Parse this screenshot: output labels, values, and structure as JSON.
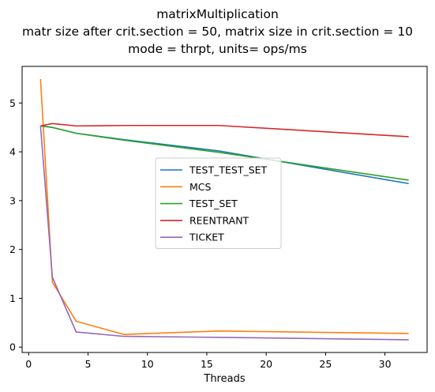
{
  "chart_data": {
    "type": "line",
    "title_lines": [
      "matrixMultiplication",
      "matr size after crit.section = 50, matrix size in crit.section = 10",
      "mode = thrpt, units= ops/ms"
    ],
    "xlabel": "Threads",
    "ylabel": "",
    "xlim": [
      -0.55,
      33.55
    ],
    "ylim": [
      -0.11,
      5.75
    ],
    "xticks": [
      0,
      5,
      10,
      15,
      20,
      25,
      30
    ],
    "yticks": [
      0,
      1,
      2,
      3,
      4,
      5
    ],
    "grid": false,
    "legend_position": "center",
    "x": [
      1,
      2,
      4,
      8,
      16,
      32
    ],
    "series": [
      {
        "name": "TEST_TEST_SET",
        "color": "#1f77b4",
        "values": [
          4.53,
          4.5,
          4.38,
          4.25,
          4.02,
          3.35
        ]
      },
      {
        "name": "MCS",
        "color": "#ff7f0e",
        "values": [
          5.49,
          1.33,
          0.53,
          0.26,
          0.33,
          0.28
        ]
      },
      {
        "name": "TEST_SET",
        "color": "#2ca02c",
        "values": [
          4.53,
          4.5,
          4.38,
          4.24,
          3.99,
          3.42
        ]
      },
      {
        "name": "REENTRANT",
        "color": "#d62728",
        "values": [
          4.53,
          4.58,
          4.53,
          4.54,
          4.54,
          4.31
        ]
      },
      {
        "name": "TICKET",
        "color": "#9467bd",
        "values": [
          4.53,
          1.43,
          0.31,
          0.22,
          0.2,
          0.15
        ]
      }
    ]
  }
}
